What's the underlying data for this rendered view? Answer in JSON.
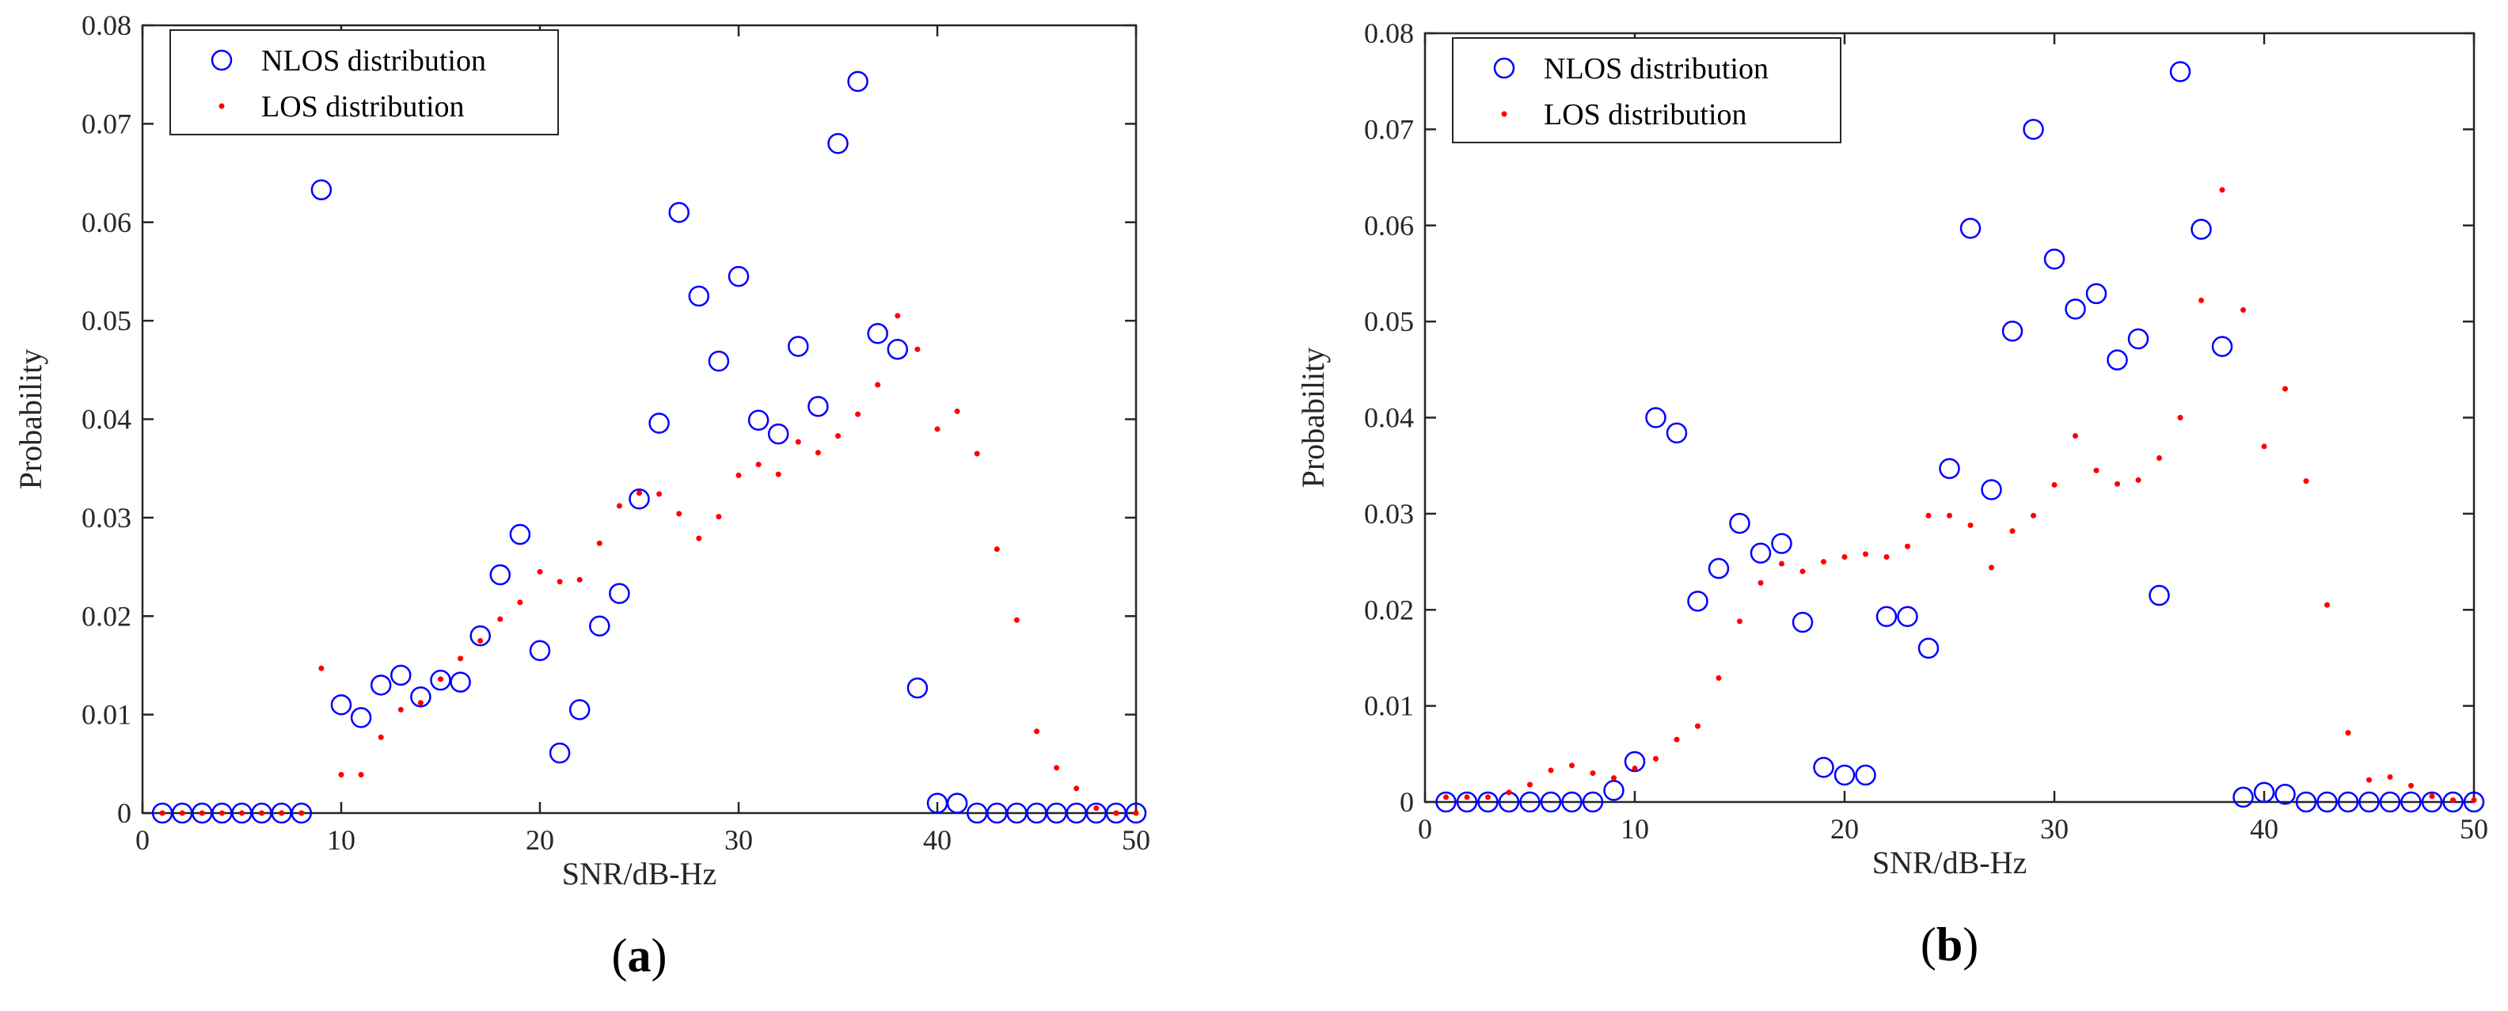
{
  "colors": {
    "nlos": "#0000ff",
    "los": "#ff0000",
    "axis": "#262626"
  },
  "chart_data": [
    {
      "type": "scatter",
      "panel_label": "(a)",
      "panel_letter": "a",
      "xlabel": "SNR/dB-Hz",
      "ylabel": "Probability",
      "xlim": [
        0,
        50
      ],
      "ylim": [
        0,
        0.08
      ],
      "xticks": [
        "0",
        "10",
        "20",
        "30",
        "40",
        "50"
      ],
      "yticks": [
        "0",
        "0.01",
        "0.02",
        "0.03",
        "0.04",
        "0.05",
        "0.06",
        "0.07",
        "0.08"
      ],
      "legend_position": "top-left",
      "series": [
        {
          "name": "NLOS distribution",
          "marker": "circle",
          "x": [
            1,
            2,
            3,
            4,
            5,
            6,
            7,
            8,
            9,
            10,
            11,
            12,
            13,
            14,
            15,
            16,
            17,
            18,
            19,
            20,
            21,
            22,
            23,
            24,
            25,
            26,
            27,
            28,
            29,
            30,
            31,
            32,
            33,
            34,
            35,
            36,
            37,
            38,
            39,
            40,
            41,
            42,
            43,
            44,
            45,
            46,
            47,
            48,
            49,
            50
          ],
          "y": [
            0,
            0,
            0,
            0,
            0,
            0,
            0,
            0,
            0.0633,
            0.011,
            0.0097,
            0.013,
            0.014,
            0.0118,
            0.0135,
            0.0133,
            0.018,
            0.0242,
            0.0283,
            0.0165,
            0.0061,
            0.0105,
            0.019,
            0.0223,
            0.0319,
            0.0396,
            0.061,
            0.0525,
            0.0459,
            0.0545,
            0.0399,
            0.0385,
            0.0474,
            0.0413,
            0.068,
            0.0743,
            0.0487,
            0.0471,
            0.0127,
            0.001,
            0.001,
            0,
            0,
            0,
            0,
            0,
            0,
            0,
            0,
            0
          ]
        },
        {
          "name": "LOS distribution",
          "marker": "dot",
          "x": [
            1,
            2,
            3,
            4,
            5,
            6,
            7,
            8,
            9,
            10,
            11,
            12,
            13,
            14,
            15,
            16,
            17,
            18,
            19,
            20,
            21,
            22,
            23,
            24,
            25,
            26,
            27,
            28,
            29,
            30,
            31,
            32,
            33,
            34,
            35,
            36,
            37,
            38,
            39,
            40,
            41,
            42,
            43,
            44,
            45,
            46,
            47,
            48,
            49,
            50
          ],
          "y": [
            0,
            0,
            0,
            0,
            0,
            0,
            0,
            0,
            0.0147,
            0.0039,
            0.0039,
            0.0077,
            0.0105,
            0.0112,
            0.0136,
            0.0157,
            0.0175,
            0.0197,
            0.0214,
            0.0245,
            0.0235,
            0.0237,
            0.0274,
            0.0312,
            0.0325,
            0.0324,
            0.0304,
            0.0279,
            0.0301,
            0.0343,
            0.0354,
            0.0344,
            0.0377,
            0.0366,
            0.0383,
            0.0405,
            0.0435,
            0.0505,
            0.0471,
            0.039,
            0.0408,
            0.0365,
            0.0268,
            0.0196,
            0.0083,
            0.0046,
            0.0025,
            0.0005,
            0,
            0
          ]
        }
      ]
    },
    {
      "type": "scatter",
      "panel_label": "(b)",
      "panel_letter": "b",
      "xlabel": "SNR/dB-Hz",
      "ylabel": "Probability",
      "xlim": [
        0,
        50
      ],
      "ylim": [
        0,
        0.08
      ],
      "xticks": [
        "0",
        "10",
        "20",
        "30",
        "40",
        "50"
      ],
      "yticks": [
        "0",
        "0.01",
        "0.02",
        "0.03",
        "0.04",
        "0.05",
        "0.06",
        "0.07",
        "0.08"
      ],
      "legend_position": "top-left",
      "series": [
        {
          "name": "NLOS distribution",
          "marker": "circle",
          "x": [
            1,
            2,
            3,
            4,
            5,
            6,
            7,
            8,
            9,
            10,
            11,
            12,
            13,
            14,
            15,
            16,
            17,
            18,
            19,
            20,
            21,
            22,
            23,
            24,
            25,
            26,
            27,
            28,
            29,
            30,
            31,
            32,
            33,
            34,
            35,
            36,
            37,
            38,
            39,
            40,
            41,
            42,
            43,
            44,
            45,
            46,
            47,
            48,
            49,
            50
          ],
          "y": [
            0,
            0,
            0,
            0,
            0,
            0,
            0,
            0,
            0.0012,
            0.0042,
            0.04,
            0.0384,
            0.0209,
            0.0243,
            0.029,
            0.0259,
            0.0269,
            0.0187,
            0.0036,
            0.0028,
            0.0028,
            0.0193,
            0.0193,
            0.016,
            0.0347,
            0.0597,
            0.0325,
            0.049,
            0.07,
            0.0565,
            0.0513,
            0.0529,
            0.046,
            0.0482,
            0.0215,
            0.076,
            0.0596,
            0.0474,
            0.0005,
            0.001,
            0.0008,
            0,
            0,
            0,
            0,
            0,
            0,
            0,
            0,
            0
          ]
        },
        {
          "name": "LOS distribution",
          "marker": "dot",
          "x": [
            1,
            2,
            3,
            4,
            5,
            6,
            7,
            8,
            9,
            10,
            11,
            12,
            13,
            14,
            15,
            16,
            17,
            18,
            19,
            20,
            21,
            22,
            23,
            24,
            25,
            26,
            27,
            28,
            29,
            30,
            31,
            32,
            33,
            34,
            35,
            36,
            37,
            38,
            39,
            40,
            41,
            42,
            43,
            44,
            45,
            46,
            47,
            48,
            49,
            50
          ],
          "y": [
            0.0005,
            0.0005,
            0.0005,
            0.001,
            0.0018,
            0.0033,
            0.0038,
            0.003,
            0.0025,
            0.0035,
            0.0045,
            0.0065,
            0.0079,
            0.0129,
            0.0188,
            0.0228,
            0.0248,
            0.024,
            0.025,
            0.0255,
            0.0258,
            0.0255,
            0.0266,
            0.0298,
            0.0298,
            0.0288,
            0.0244,
            0.0282,
            0.0298,
            0.033,
            0.0381,
            0.0345,
            0.0331,
            0.0335,
            0.0358,
            0.04,
            0.0522,
            0.0637,
            0.0512,
            0.037,
            0.043,
            0.0334,
            0.0205,
            0.0072,
            0.0023,
            0.0026,
            0.0017,
            0.0006,
            0.0002,
            0.0002
          ]
        }
      ]
    }
  ]
}
